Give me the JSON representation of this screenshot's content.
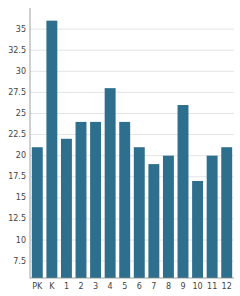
{
  "chart_data": {
    "type": "bar",
    "categories": [
      "PK",
      "K",
      "1",
      "2",
      "3",
      "4",
      "5",
      "6",
      "7",
      "8",
      "9",
      "10",
      "11",
      "12"
    ],
    "values": [
      21,
      36,
      22,
      24,
      24,
      28,
      24,
      21,
      19,
      20,
      26,
      17,
      20,
      21
    ],
    "color": "#2e6f8e",
    "ylim": [
      5.5,
      37.5
    ],
    "yticks": [
      7.5,
      10,
      12.5,
      15,
      17.5,
      20,
      22.5,
      25,
      27.5,
      30,
      32.5,
      35
    ],
    "grid": true
  }
}
